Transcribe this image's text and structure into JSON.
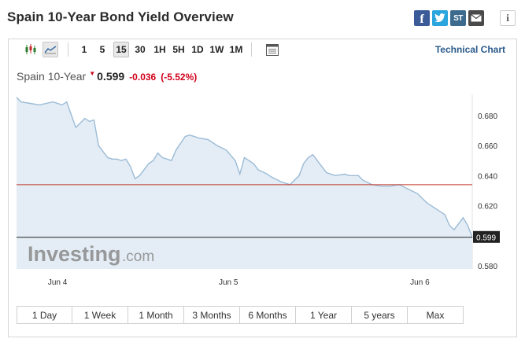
{
  "header": {
    "title": "Spain 10-Year Bond Yield Overview",
    "share": [
      "f",
      "t",
      "ST",
      "✉"
    ],
    "info": "i"
  },
  "toolbar": {
    "timeframes": [
      "1",
      "5",
      "15",
      "30",
      "1H",
      "5H",
      "1D",
      "1W",
      "1M"
    ],
    "active_timeframe": "15",
    "technical_chart_label": "Technical Chart"
  },
  "quote": {
    "name": "Spain 10-Year",
    "price": "0.599",
    "change": "-0.036",
    "change_pct": "(-5.52%)"
  },
  "watermark": {
    "brand": "Investing",
    "suffix": ".com"
  },
  "ranges": [
    "1 Day",
    "1 Week",
    "1 Month",
    "3 Months",
    "6 Months",
    "1 Year",
    "5 years",
    "Max"
  ],
  "colors": {
    "line": "#9bbbd6",
    "area": "#e4edf5",
    "reference_line": "#c0392b",
    "price_badge": "#222222",
    "negative": "#d0021b"
  },
  "chart_data": {
    "type": "area",
    "title": "",
    "xlabel": "",
    "ylabel": "",
    "ylim": [
      0.578,
      0.694
    ],
    "y_ticks": [
      "0.680",
      "0.660",
      "0.640",
      "0.620",
      "0.580"
    ],
    "y_tick_values": [
      0.68,
      0.66,
      0.64,
      0.62,
      0.58
    ],
    "x_tick_labels": [
      "Jun 4",
      "Jun 5",
      "Jun 6"
    ],
    "x_tick_positions": [
      0.09,
      0.465,
      0.885
    ],
    "reference_line": 0.634,
    "last_price": "0.599",
    "last_value": 0.599,
    "series": [
      {
        "x": [
          0.0,
          0.01,
          0.03,
          0.05,
          0.08,
          0.1,
          0.11,
          0.13,
          0.14,
          0.15,
          0.16,
          0.17,
          0.18,
          0.2,
          0.21,
          0.22,
          0.23,
          0.24,
          0.25,
          0.26,
          0.27,
          0.28,
          0.29,
          0.3,
          0.31,
          0.32,
          0.34,
          0.35,
          0.37,
          0.38,
          0.39,
          0.4,
          0.42,
          0.44,
          0.46,
          0.48,
          0.49,
          0.5,
          0.52,
          0.53,
          0.55,
          0.56,
          0.58,
          0.6,
          0.62,
          0.63,
          0.64,
          0.65,
          0.66,
          0.68,
          0.7,
          0.72,
          0.73,
          0.75,
          0.76,
          0.78,
          0.8,
          0.82,
          0.84,
          0.86,
          0.88,
          0.9,
          0.91,
          0.92,
          0.94,
          0.95,
          0.96,
          0.97,
          0.98,
          0.99,
          1.0
        ],
        "y": [
          0.692,
          0.689,
          0.688,
          0.687,
          0.689,
          0.687,
          0.689,
          0.672,
          0.675,
          0.678,
          0.676,
          0.677,
          0.66,
          0.652,
          0.651,
          0.651,
          0.65,
          0.651,
          0.646,
          0.638,
          0.64,
          0.644,
          0.648,
          0.65,
          0.655,
          0.652,
          0.65,
          0.657,
          0.666,
          0.667,
          0.666,
          0.665,
          0.664,
          0.66,
          0.657,
          0.65,
          0.641,
          0.652,
          0.648,
          0.644,
          0.641,
          0.639,
          0.636,
          0.634,
          0.64,
          0.648,
          0.652,
          0.654,
          0.65,
          0.642,
          0.64,
          0.641,
          0.64,
          0.64,
          0.637,
          0.634,
          0.633,
          0.633,
          0.634,
          0.631,
          0.628,
          0.622,
          0.62,
          0.618,
          0.614,
          0.607,
          0.604,
          0.608,
          0.612,
          0.607,
          0.599
        ]
      }
    ]
  }
}
